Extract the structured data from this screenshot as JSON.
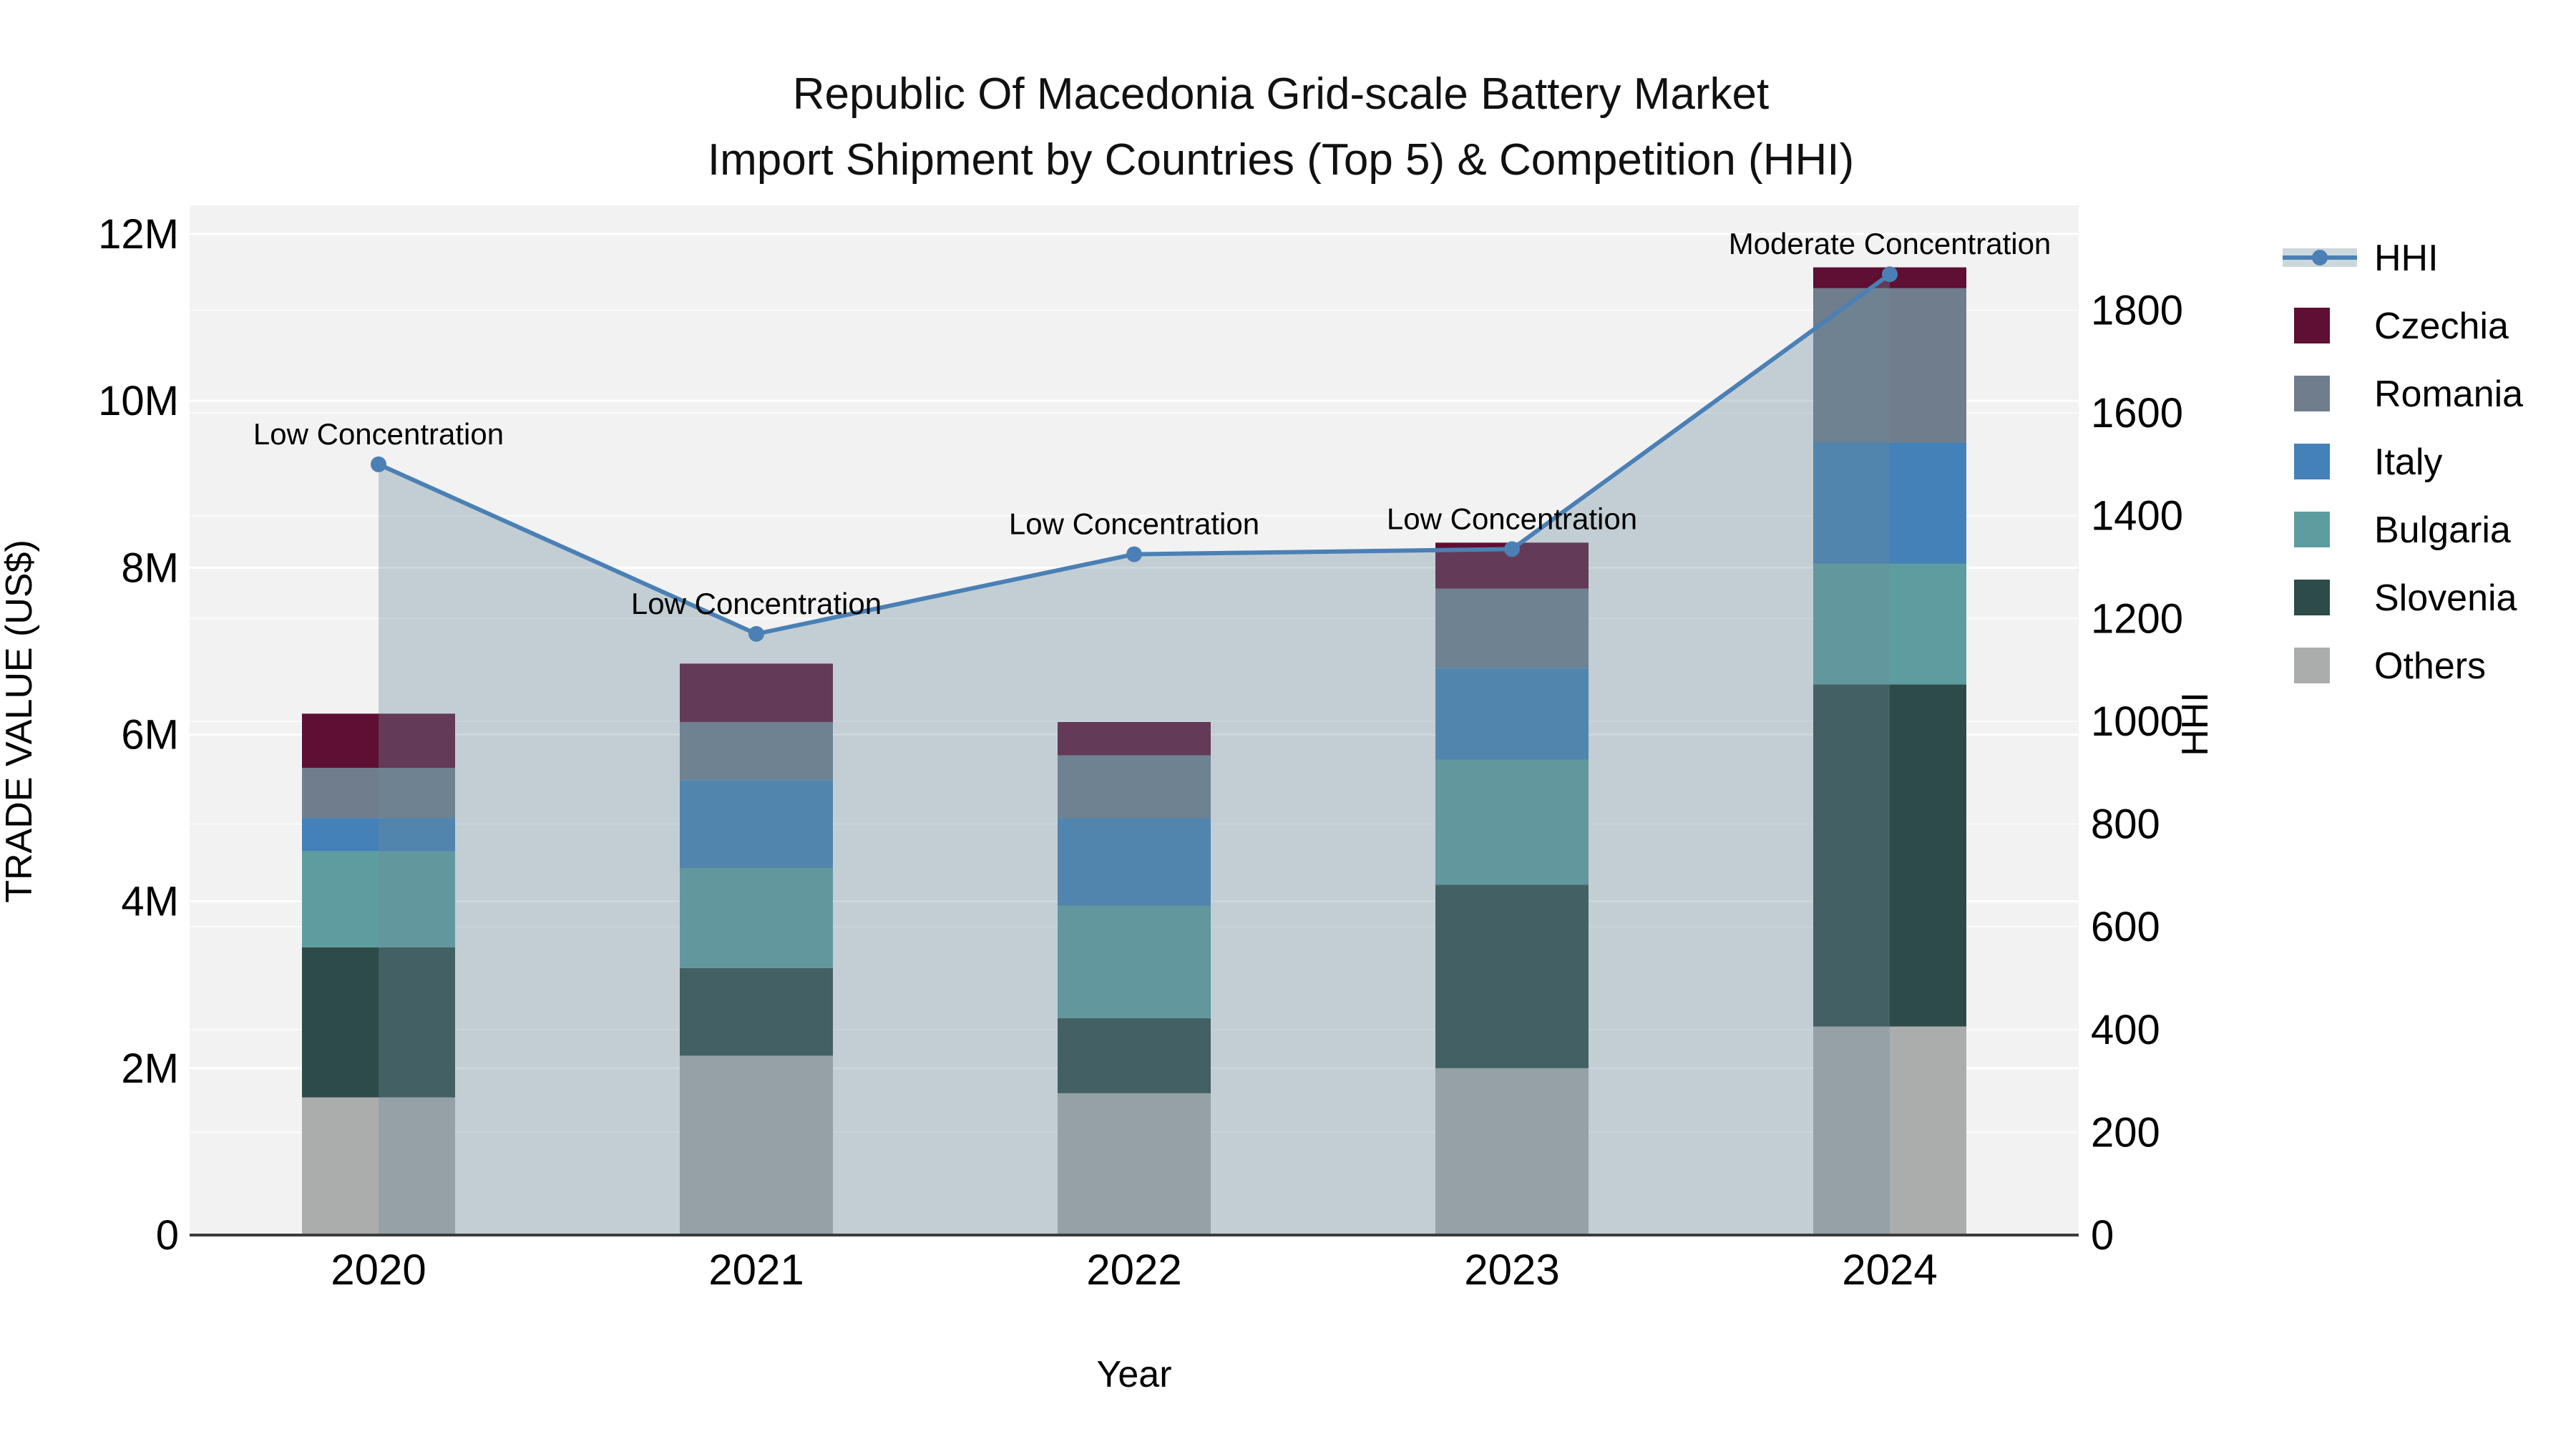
{
  "title": {
    "line1": "Republic Of Macedonia Grid-scale Battery Market",
    "line2": "Import Shipment by Countries (Top 5) & Competition (HHI)"
  },
  "legend": {
    "items": [
      "HHI",
      "Czechia",
      "Romania",
      "Italy",
      "Bulgaria",
      "Slovenia",
      "Others"
    ]
  },
  "chart_data": {
    "type": "combo",
    "subtypes": [
      "stacked-bar",
      "line-with-area"
    ],
    "categories": [
      "2020",
      "2021",
      "2022",
      "2023",
      "2024"
    ],
    "bar_unit": "US$ millions",
    "series": [
      {
        "name": "Others",
        "color": "#ABADAD",
        "values": [
          1.65,
          2.15,
          1.7,
          2.0,
          2.5
        ]
      },
      {
        "name": "Slovenia",
        "color": "#2D4B48",
        "values": [
          1.8,
          1.05,
          0.9,
          2.2,
          4.1
        ]
      },
      {
        "name": "Bulgaria",
        "color": "#5D9DA0",
        "values": [
          1.15,
          1.2,
          1.35,
          1.5,
          1.45
        ]
      },
      {
        "name": "Italy",
        "color": "#4381B8",
        "values": [
          0.4,
          1.05,
          1.05,
          1.1,
          1.45
        ]
      },
      {
        "name": "Romania",
        "color": "#6F7D8C",
        "values": [
          0.6,
          0.7,
          0.75,
          0.95,
          1.85
        ]
      },
      {
        "name": "Czechia",
        "color": "#5E0F33",
        "values": [
          0.65,
          0.7,
          0.4,
          0.55,
          0.25
        ]
      }
    ],
    "bar_totals_millions": [
      6.25,
      6.85,
      6.15,
      8.3,
      11.6
    ],
    "hhi": {
      "name": "HHI",
      "color": "#4A80B5",
      "area_fill_rgb": "108,140,155",
      "area_fill_alpha": 0.35,
      "values": [
        1500,
        1170,
        1325,
        1335,
        1870
      ]
    },
    "annotations": [
      "Low Concentration",
      "Low Concentration",
      "Low Concentration",
      "Low Concentration",
      "Moderate Concentration"
    ],
    "left_axis": {
      "label": "TRADE VALUE (US$)",
      "ticks": [
        "0",
        "2M",
        "4M",
        "6M",
        "8M",
        "10M",
        "12M"
      ],
      "range": [
        0,
        12000000
      ]
    },
    "right_axis": {
      "label": "HHI",
      "ticks": [
        "0",
        "200",
        "400",
        "600",
        "800",
        "1000",
        "1200",
        "1400",
        "1600",
        "1800"
      ],
      "range": [
        0,
        1800
      ]
    },
    "x_axis": {
      "label": "Year"
    },
    "grid": true,
    "legend_position": "right",
    "plot_background": "#F2F2F3"
  }
}
